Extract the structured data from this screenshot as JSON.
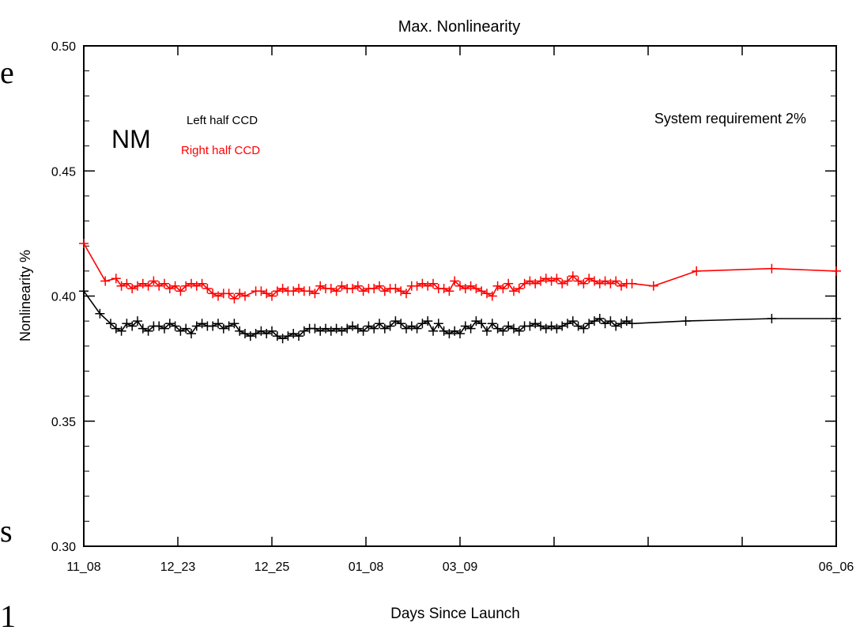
{
  "background_fragments": [
    "e",
    "s",
    "1"
  ],
  "chart_data": {
    "type": "line",
    "title": "Max. Nonlinearity",
    "xlabel": "Days Since Launch",
    "ylabel": "Nonlinearity %",
    "ylim": [
      0.3,
      0.5
    ],
    "yticks": [
      "0.30",
      "0.35",
      "0.40",
      "0.45",
      "0.50"
    ],
    "xticks": [
      "11_08",
      "12_23",
      "12_25",
      "01_08",
      "03_09",
      "06_06"
    ],
    "grid": false,
    "legend": {
      "placement": "top-left",
      "entries": [
        "Left half CCD",
        "Right half CCD"
      ]
    },
    "annotations": {
      "mode": "NM",
      "requirement": "System requirement 2%"
    },
    "colors": {
      "left": "#000000",
      "right": "#ff0000",
      "frame": "#000000"
    },
    "series": [
      {
        "name": "Right half CCD",
        "color": "#ff0000",
        "x": [
          0.0,
          0.2,
          0.3,
          0.35,
          0.4,
          0.45,
          0.5,
          0.55,
          0.6,
          0.65,
          0.7,
          0.75,
          0.8,
          0.85,
          0.9,
          0.95,
          1.0,
          1.05,
          1.1,
          1.15,
          1.2,
          1.25,
          1.3,
          1.35,
          1.4,
          1.45,
          1.5,
          1.6,
          1.65,
          1.7,
          1.75,
          1.8,
          1.85,
          1.9,
          1.95,
          2.0,
          2.05,
          2.1,
          2.15,
          2.2,
          2.25,
          2.3,
          2.35,
          2.4,
          2.45,
          2.5,
          2.55,
          2.6,
          2.65,
          2.7,
          2.75,
          2.8,
          2.85,
          2.9,
          2.95,
          3.0,
          3.05,
          3.1,
          3.15,
          3.2,
          3.25,
          3.3,
          3.35,
          3.4,
          3.45,
          3.5,
          3.55,
          3.6,
          3.65,
          3.7,
          3.75,
          3.8,
          3.85,
          3.9,
          3.95,
          4.0,
          4.05,
          4.1,
          4.15,
          4.2,
          4.25,
          4.3,
          4.35,
          4.4,
          4.45,
          4.5,
          4.55,
          4.6,
          4.65,
          4.7,
          4.75,
          4.8,
          4.85,
          4.9,
          4.95,
          5.0,
          5.05,
          5.1,
          5.3,
          5.7,
          6.4,
          7.0
        ],
        "values": [
          0.421,
          0.406,
          0.407,
          0.404,
          0.405,
          0.403,
          0.404,
          0.405,
          0.404,
          0.406,
          0.404,
          0.405,
          0.403,
          0.404,
          0.402,
          0.404,
          0.405,
          0.404,
          0.405,
          0.403,
          0.401,
          0.4,
          0.401,
          0.401,
          0.399,
          0.401,
          0.4,
          0.402,
          0.402,
          0.401,
          0.4,
          0.402,
          0.403,
          0.402,
          0.402,
          0.403,
          0.402,
          0.402,
          0.401,
          0.404,
          0.403,
          0.403,
          0.402,
          0.404,
          0.403,
          0.403,
          0.404,
          0.402,
          0.403,
          0.403,
          0.404,
          0.402,
          0.403,
          0.403,
          0.402,
          0.401,
          0.404,
          0.404,
          0.405,
          0.404,
          0.405,
          0.403,
          0.403,
          0.402,
          0.406,
          0.404,
          0.403,
          0.404,
          0.403,
          0.402,
          0.401,
          0.4,
          0.404,
          0.403,
          0.405,
          0.402,
          0.403,
          0.405,
          0.406,
          0.405,
          0.406,
          0.407,
          0.406,
          0.407,
          0.405,
          0.406,
          0.408,
          0.406,
          0.405,
          0.407,
          0.406,
          0.405,
          0.406,
          0.405,
          0.406,
          0.404,
          0.405,
          0.405,
          0.404,
          0.41,
          0.411,
          0.41
        ]
      },
      {
        "name": "Left half CCD",
        "color": "#000000",
        "x": [
          0.0,
          0.15,
          0.25,
          0.3,
          0.35,
          0.4,
          0.45,
          0.5,
          0.55,
          0.6,
          0.65,
          0.7,
          0.75,
          0.8,
          0.85,
          0.9,
          0.95,
          1.0,
          1.05,
          1.1,
          1.15,
          1.2,
          1.25,
          1.3,
          1.35,
          1.4,
          1.45,
          1.5,
          1.55,
          1.6,
          1.65,
          1.7,
          1.75,
          1.8,
          1.85,
          1.9,
          1.95,
          2.0,
          2.05,
          2.1,
          2.15,
          2.2,
          2.25,
          2.3,
          2.35,
          2.4,
          2.45,
          2.5,
          2.55,
          2.6,
          2.65,
          2.7,
          2.75,
          2.8,
          2.85,
          2.9,
          2.95,
          3.0,
          3.05,
          3.1,
          3.15,
          3.2,
          3.25,
          3.3,
          3.35,
          3.4,
          3.45,
          3.5,
          3.55,
          3.6,
          3.65,
          3.7,
          3.75,
          3.8,
          3.85,
          3.9,
          3.95,
          4.0,
          4.05,
          4.1,
          4.15,
          4.2,
          4.25,
          4.3,
          4.35,
          4.4,
          4.45,
          4.5,
          4.55,
          4.6,
          4.65,
          4.7,
          4.75,
          4.8,
          4.85,
          4.9,
          4.95,
          5.0,
          5.05,
          5.1,
          5.6,
          6.4,
          7.0
        ],
        "values": [
          0.402,
          0.393,
          0.389,
          0.387,
          0.386,
          0.389,
          0.388,
          0.39,
          0.387,
          0.386,
          0.388,
          0.388,
          0.387,
          0.389,
          0.388,
          0.386,
          0.387,
          0.385,
          0.388,
          0.389,
          0.388,
          0.388,
          0.389,
          0.387,
          0.388,
          0.389,
          0.386,
          0.385,
          0.384,
          0.385,
          0.386,
          0.385,
          0.386,
          0.384,
          0.383,
          0.384,
          0.385,
          0.384,
          0.386,
          0.387,
          0.387,
          0.386,
          0.387,
          0.386,
          0.387,
          0.386,
          0.387,
          0.388,
          0.387,
          0.386,
          0.388,
          0.387,
          0.389,
          0.387,
          0.388,
          0.39,
          0.389,
          0.387,
          0.388,
          0.387,
          0.389,
          0.39,
          0.386,
          0.389,
          0.386,
          0.385,
          0.386,
          0.385,
          0.388,
          0.387,
          0.39,
          0.389,
          0.386,
          0.389,
          0.387,
          0.386,
          0.388,
          0.387,
          0.386,
          0.388,
          0.388,
          0.389,
          0.388,
          0.387,
          0.388,
          0.387,
          0.388,
          0.389,
          0.39,
          0.388,
          0.387,
          0.389,
          0.39,
          0.391,
          0.389,
          0.39,
          0.388,
          0.389,
          0.39,
          0.389,
          0.39,
          0.391,
          0.391
        ]
      }
    ]
  }
}
